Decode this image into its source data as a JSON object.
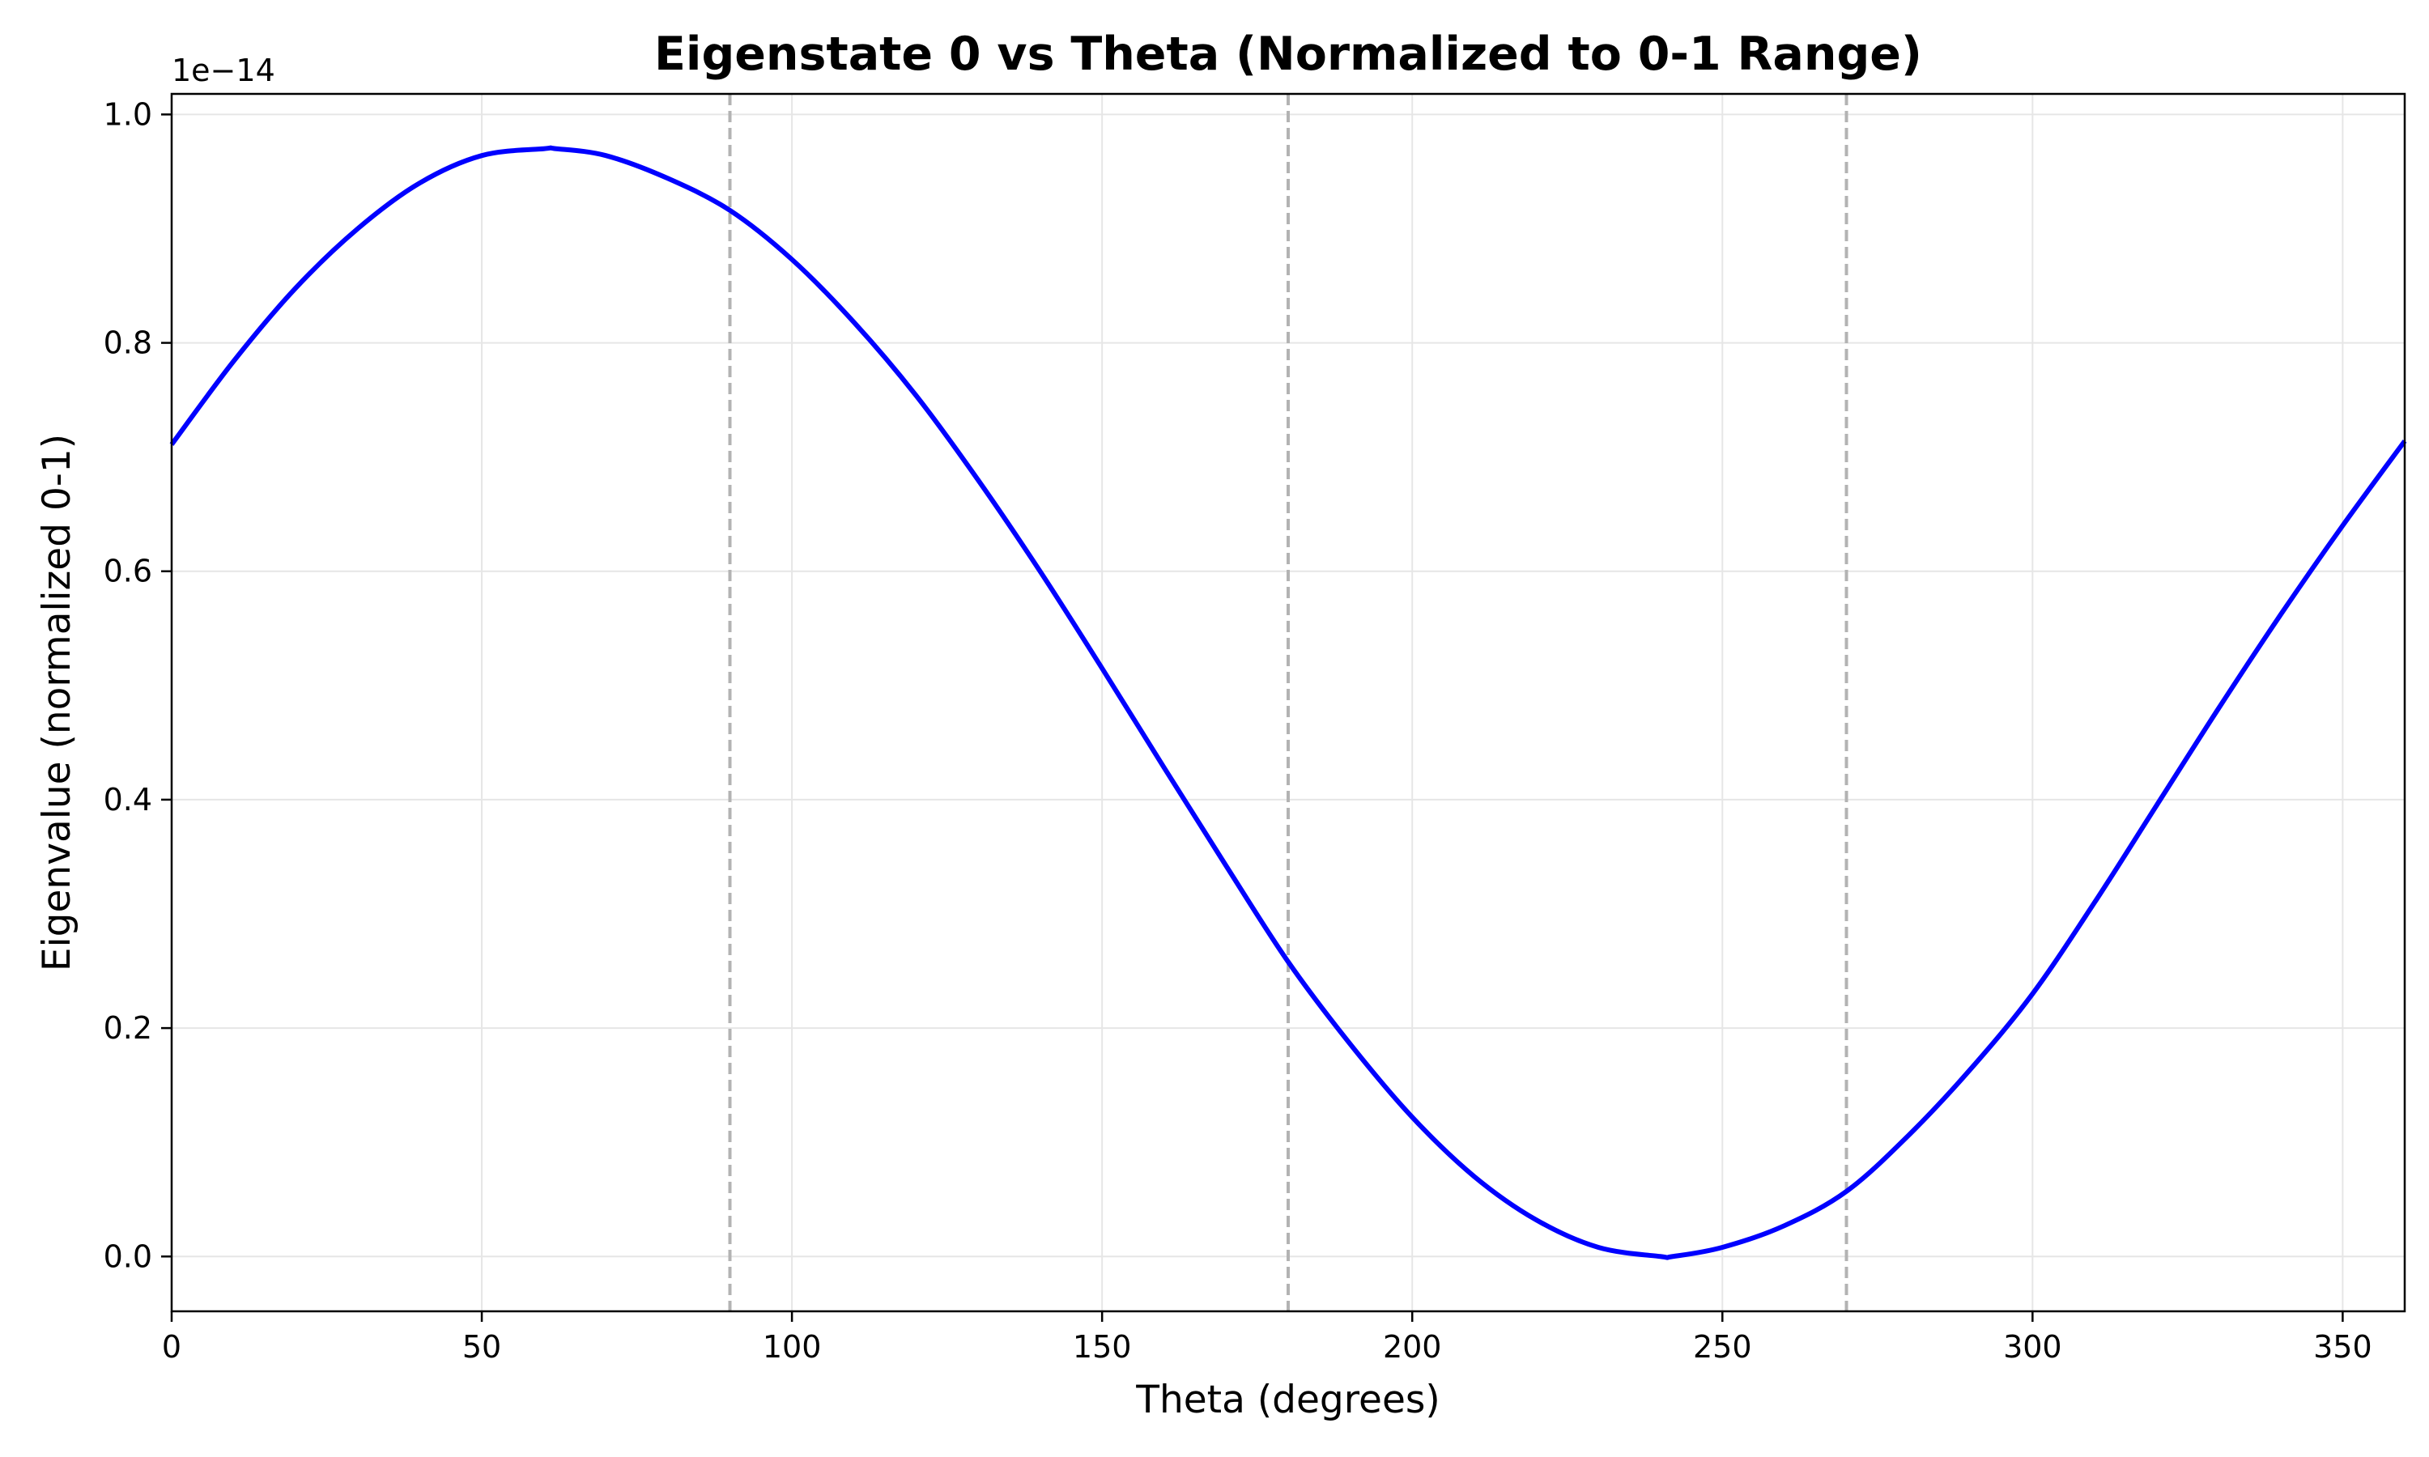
{
  "chart_data": {
    "type": "line",
    "title": "Eigenstate 0 vs Theta (Normalized to 0-1 Range)",
    "xlabel": "Theta (degrees)",
    "ylabel": "Eigenvalue (normalized 0-1)",
    "y_offset_text": "1e−14",
    "xlim": [
      0,
      360
    ],
    "ylim": [
      -0.048,
      1.018
    ],
    "x_ticks": [
      0,
      50,
      100,
      150,
      200,
      250,
      300,
      350
    ],
    "x_tick_labels": [
      "0",
      "50",
      "100",
      "150",
      "200",
      "250",
      "300",
      "350"
    ],
    "y_ticks": [
      0.0,
      0.2,
      0.4,
      0.6,
      0.8,
      1.0
    ],
    "y_tick_labels": [
      "0.0",
      "0.2",
      "0.4",
      "0.6",
      "0.8",
      "1.0"
    ],
    "grid": true,
    "vertical_reference_lines": [
      90,
      180,
      270
    ],
    "series": [
      {
        "color": "#0000ff",
        "x": [
          0,
          10,
          20,
          30,
          40,
          50,
          60,
          62,
          70,
          80,
          90,
          100,
          110,
          120,
          130,
          140,
          150,
          160,
          170,
          180,
          190,
          200,
          210,
          220,
          230,
          240,
          242,
          250,
          260,
          270,
          280,
          290,
          300,
          310,
          320,
          330,
          340,
          350,
          360
        ],
        "y": [
          0.711,
          0.784,
          0.848,
          0.9,
          0.94,
          0.964,
          0.97,
          0.97,
          0.964,
          0.944,
          0.916,
          0.873,
          0.818,
          0.754,
          0.68,
          0.6,
          0.515,
          0.428,
          0.342,
          0.258,
          0.186,
          0.122,
          0.07,
          0.032,
          0.008,
          0.0,
          0.0,
          0.008,
          0.027,
          0.057,
          0.106,
          0.164,
          0.23,
          0.31,
          0.395,
          0.48,
          0.562,
          0.64,
          0.714
        ]
      }
    ]
  }
}
